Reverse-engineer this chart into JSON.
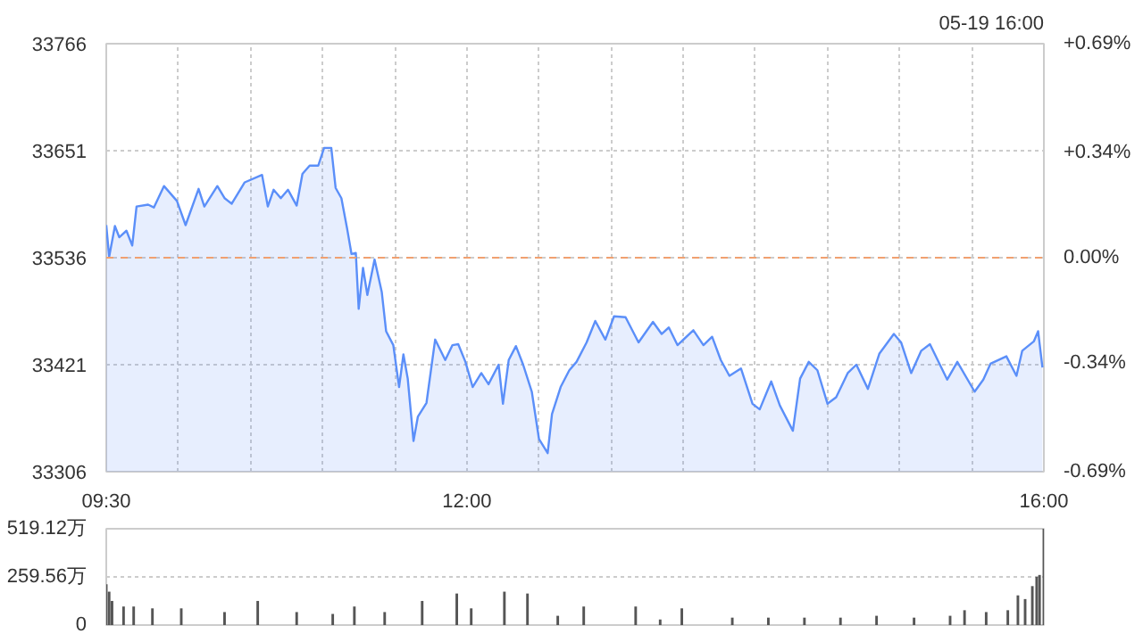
{
  "chart_data": [
    {
      "type": "area",
      "annotations": [
        "05-19 16:00"
      ],
      "x": [
        9.5,
        9.52,
        9.56,
        9.59,
        9.64,
        9.68,
        9.71,
        9.79,
        9.83,
        9.9,
        9.99,
        10.05,
        10.14,
        10.18,
        10.27,
        10.32,
        10.37,
        10.46,
        10.58,
        10.62,
        10.66,
        10.71,
        10.76,
        10.82,
        10.86,
        10.91,
        10.97,
        11.01,
        11.06,
        11.09,
        11.13,
        11.17,
        11.2,
        11.23,
        11.25,
        11.28,
        11.31,
        11.36,
        11.41,
        11.44,
        11.49,
        11.53,
        11.56,
        11.59,
        11.63,
        11.66,
        11.72,
        11.78,
        11.85,
        11.9,
        11.94,
        11.99,
        12.04,
        12.1,
        12.15,
        12.22,
        12.25,
        12.29,
        12.34,
        12.39,
        12.45,
        12.5,
        12.56,
        12.59,
        12.65,
        12.71,
        12.76,
        12.83,
        12.89,
        12.96,
        13.02,
        13.1,
        13.19,
        13.29,
        13.35,
        13.4,
        13.46,
        13.57,
        13.64,
        13.7,
        13.76,
        13.82,
        13.9,
        13.98,
        14.03,
        14.11,
        14.17,
        14.26,
        14.31,
        14.37,
        14.43,
        14.5,
        14.56,
        14.64,
        14.7,
        14.78,
        14.86,
        14.96,
        15.01,
        15.08,
        15.15,
        15.21,
        15.33,
        15.4,
        15.52,
        15.58,
        15.63,
        15.74,
        15.81,
        15.85,
        15.93,
        15.96,
        15.99
      ],
      "series": [
        {
          "color": "#5b8ff9",
          "values": [
            33571,
            33537,
            33570,
            33558,
            33565,
            33549,
            33591,
            33593,
            33590,
            33613,
            33597,
            33571,
            33610,
            33591,
            33613,
            33600,
            33594,
            33617,
            33625,
            33591,
            33609,
            33600,
            33609,
            33592,
            33626,
            33635,
            33635,
            33654,
            33654,
            33611,
            33600,
            33567,
            33540,
            33541,
            33481,
            33525,
            33496,
            33534,
            33499,
            33457,
            33442,
            33397,
            33432,
            33406,
            33339,
            33365,
            33380,
            33448,
            33426,
            33442,
            33443,
            33424,
            33397,
            33412,
            33400,
            33421,
            33379,
            33426,
            33441,
            33421,
            33392,
            33341,
            33326,
            33368,
            33397,
            33415,
            33424,
            33445,
            33468,
            33448,
            33473,
            33472,
            33445,
            33467,
            33454,
            33461,
            33442,
            33458,
            33442,
            33451,
            33426,
            33409,
            33417,
            33379,
            33373,
            33403,
            33377,
            33350,
            33406,
            33424,
            33415,
            33379,
            33386,
            33412,
            33421,
            33395,
            33433,
            33454,
            33445,
            33412,
            33436,
            33443,
            33405,
            33424,
            33392,
            33405,
            33422,
            33430,
            33409,
            33436,
            33446,
            33457,
            33418
          ]
        }
      ],
      "xlim": [
        9.5,
        16.0
      ],
      "xticks": [
        {
          "value": 9.5,
          "label": "09:30"
        },
        {
          "value": 10,
          "label": null
        },
        {
          "value": 10.5,
          "label": null
        },
        {
          "value": 11,
          "label": null
        },
        {
          "value": 11.5,
          "label": null
        },
        {
          "value": 12,
          "label": "12:00"
        },
        {
          "value": 12.5,
          "label": null
        },
        {
          "value": 13,
          "label": null
        },
        {
          "value": 13.5,
          "label": null
        },
        {
          "value": 14,
          "label": null
        },
        {
          "value": 14.5,
          "label": null
        },
        {
          "value": 15,
          "label": null
        },
        {
          "value": 15.5,
          "label": null
        },
        {
          "value": 16,
          "label": "16:00"
        }
      ],
      "ylim": [
        33306,
        33766
      ],
      "yticks": [
        33306,
        33421,
        33536,
        33651,
        33766
      ],
      "y2lim": [
        -0.69,
        0.69
      ],
      "y2ticks": [
        {
          "value": -0.69,
          "label": "-0.69%"
        },
        {
          "value": -0.34,
          "label": "-0.34%"
        },
        {
          "value": 0,
          "label": "0.00%"
        },
        {
          "value": 0.34,
          "label": "+0.34%"
        },
        {
          "value": 0.69,
          "label": "+0.69%"
        }
      ],
      "ref_lines": [
        {
          "axis": "y",
          "value": 33536,
          "color": "#f0a070",
          "line_style": "dashed"
        }
      ],
      "grid": true
    },
    {
      "type": "bar",
      "x": [
        9.5,
        9.52,
        9.54,
        9.62,
        9.69,
        9.82,
        10.02,
        10.32,
        10.55,
        10.82,
        11.07,
        11.22,
        11.43,
        11.69,
        11.93,
        12.03,
        12.26,
        12.42,
        12.63,
        12.81,
        13.17,
        13.34,
        13.49,
        13.84,
        14.09,
        14.34,
        14.59,
        14.84,
        15.1,
        15.35,
        15.45,
        15.6,
        15.75,
        15.82,
        15.87,
        15.92,
        15.95,
        15.97,
        16.0
      ],
      "series": [
        {
          "color": "#555555",
          "values": [
            220,
            180,
            130,
            100,
            100,
            90,
            90,
            70,
            130,
            70,
            60,
            100,
            70,
            130,
            170,
            90,
            180,
            170,
            50,
            100,
            100,
            30,
            90,
            40,
            40,
            40,
            40,
            50,
            40,
            50,
            80,
            70,
            80,
            160,
            140,
            210,
            260,
            270,
            519.12
          ]
        }
      ],
      "xlim": [
        9.5,
        16.0
      ],
      "ylim": [
        0,
        519.12
      ],
      "yticks": [
        0,
        {
          "value": 259.56,
          "label": "259.56万"
        },
        {
          "value": 519.12,
          "label": "519.12万"
        }
      ],
      "tick_labels": "y",
      "grid": "y"
    }
  ]
}
